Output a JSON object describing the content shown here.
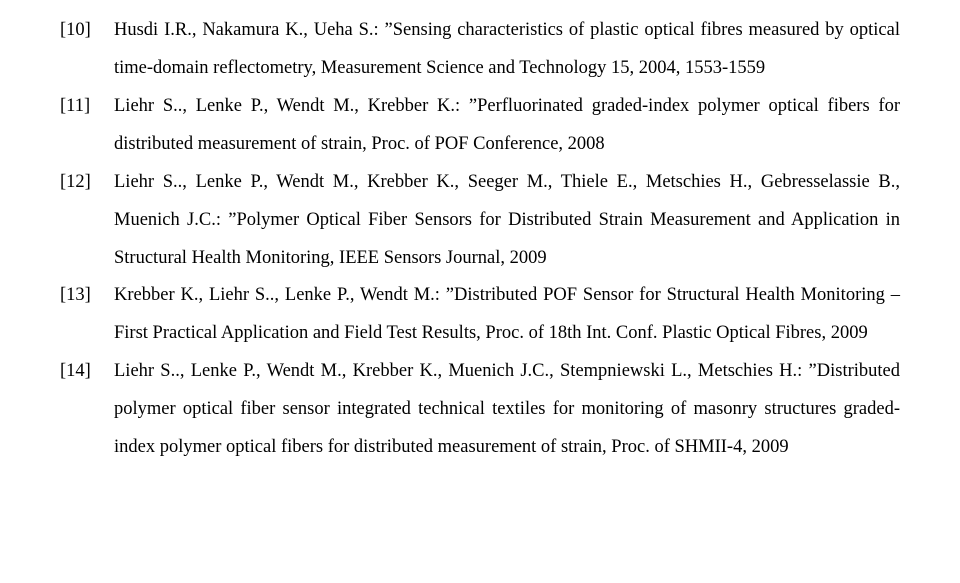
{
  "font": {
    "family": "Times New Roman",
    "size_pt": 14,
    "color": "#000000"
  },
  "background_color": "#ffffff",
  "references": [
    {
      "label": "[10]",
      "text": "Husdi I.R., Nakamura K., Ueha S.: ”Sensing characteristics of plastic optical fibres measured by optical time-domain reflectometry, Measurement  Science and Technology 15, 2004, 1553-1559"
    },
    {
      "label": "[11]",
      "text": "Liehr S.., Lenke P., Wendt M., Krebber K.: ”Perfluorinated graded-index polymer optical fibers for distributed measurement of strain, Proc. of POF Conference, 2008"
    },
    {
      "label": "[12]",
      "text": "Liehr S.., Lenke P., Wendt M., Krebber K., Seeger M., Thiele E., Metschies H., Gebresselassie B., Muenich J.C.: ”Polymer Optical Fiber Sensors for Distributed Strain Measurement and Application in Structural Health Monitoring, IEEE Sensors Journal, 2009"
    },
    {
      "label": "[13]",
      "text": "Krebber K., Liehr S.., Lenke P., Wendt M.: ”Distributed POF Sensor for Structural Health Monitoring – First Practical Application and Field Test Results, Proc. of 18th Int. Conf. Plastic Optical Fibres, 2009"
    },
    {
      "label": "[14]",
      "text": "Liehr S.., Lenke P., Wendt M., Krebber K., Muenich J.C., Stempniewski L., Metschies H.: ”Distributed polymer optical fiber sensor integrated technical textiles for monitoring of masonry structures  graded-index polymer optical fibers for distributed measurement of strain, Proc. of SHMII-4, 2009"
    }
  ]
}
